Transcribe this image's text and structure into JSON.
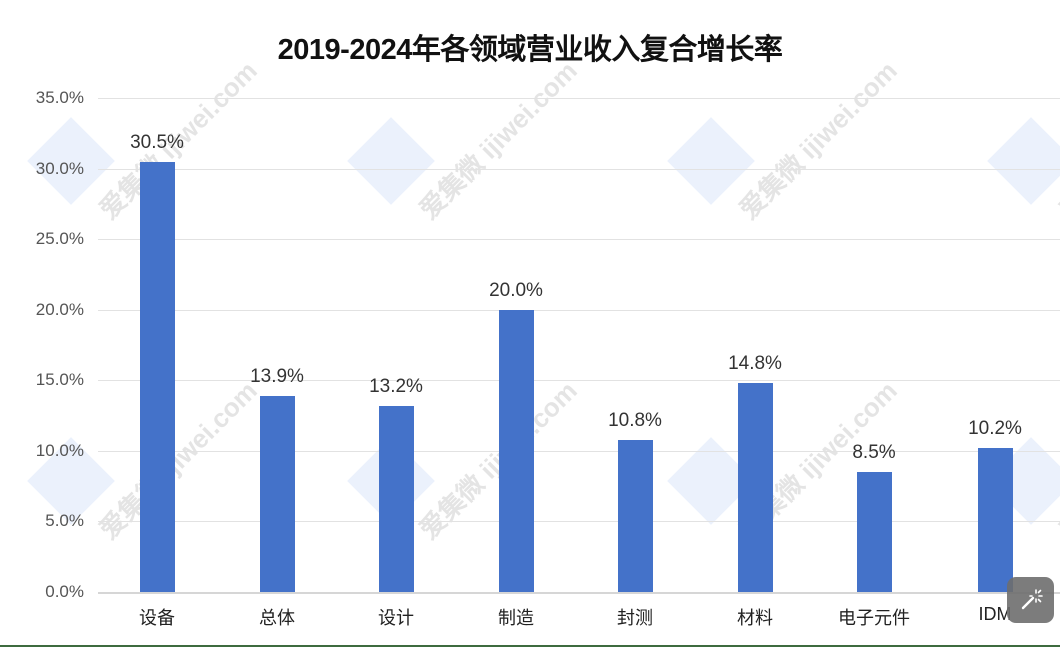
{
  "chart_data": {
    "type": "bar",
    "title": "2019-2024年各领域营业收入复合增长率",
    "categories": [
      "设备",
      "总体",
      "设计",
      "制造",
      "封测",
      "材料",
      "电子元件",
      "IDM"
    ],
    "values": [
      30.5,
      13.9,
      13.2,
      20.0,
      10.8,
      14.8,
      8.5,
      10.2
    ],
    "value_labels": [
      "30.5%",
      "13.9%",
      "13.2%",
      "20.0%",
      "10.8%",
      "14.8%",
      "8.5%",
      "10.2%"
    ],
    "xlabel": "",
    "ylabel": "",
    "ylim": [
      0,
      35
    ],
    "yticks": [
      "0.0%",
      "5.0%",
      "10.0%",
      "15.0%",
      "20.0%",
      "25.0%",
      "30.0%",
      "35.0%"
    ],
    "grid": true,
    "legend": "none",
    "bar_color": "#4472c9"
  },
  "watermark": {
    "text": "爱集微",
    "url_text": "ijiwei.com"
  },
  "overlay": {
    "magic_button_icon": "magic-wand-icon"
  }
}
